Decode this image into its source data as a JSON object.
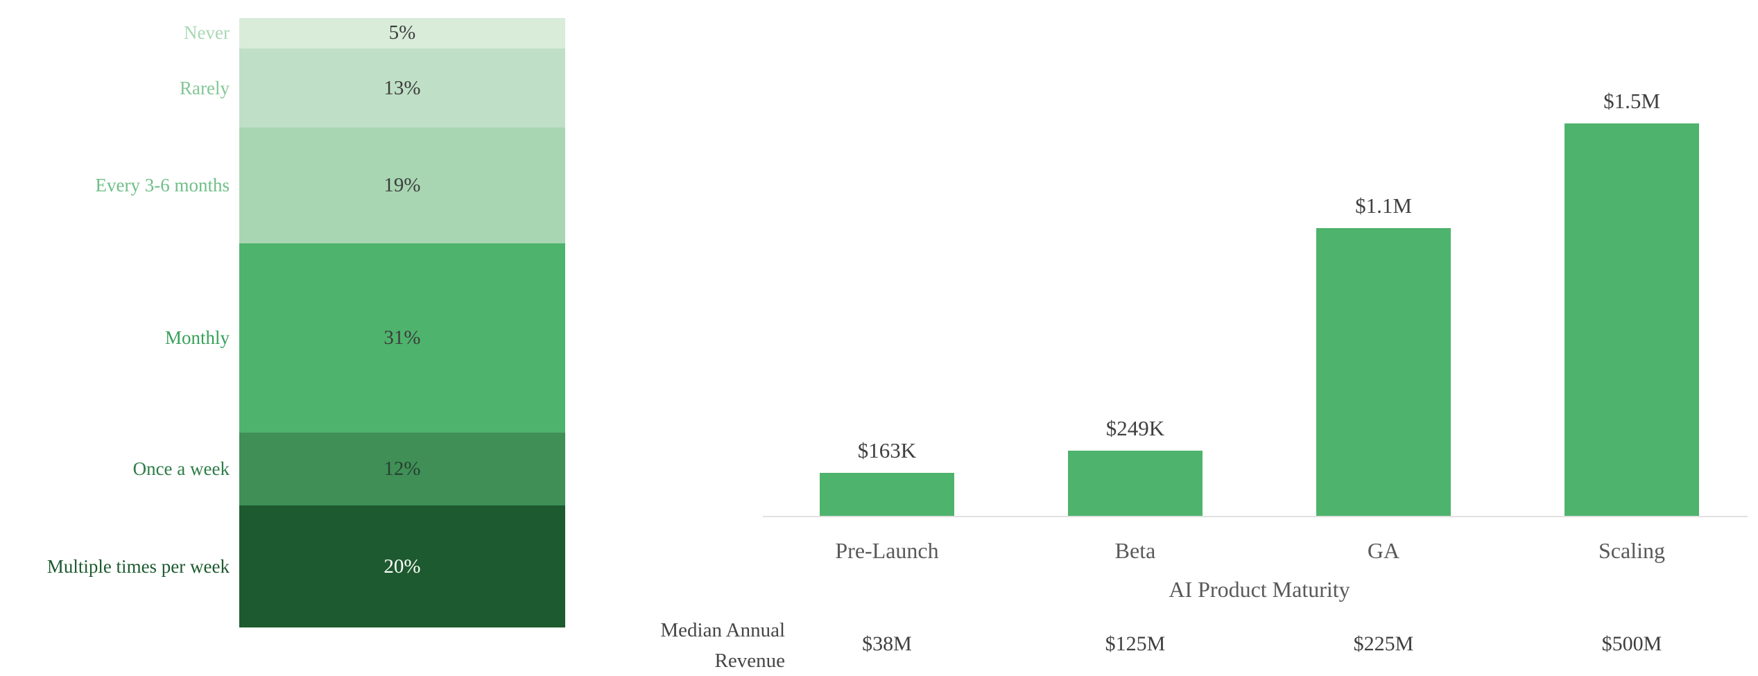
{
  "chart_data": [
    {
      "id": "usage-frequency-stacked",
      "type": "bar",
      "subtype": "stacked-column",
      "categories": [
        "Never",
        "Rarely",
        "Every 3-6 months",
        "Monthly",
        "Once a week",
        "Multiple times per week"
      ],
      "values": [
        5,
        13,
        19,
        31,
        12,
        20
      ],
      "value_labels": [
        "5%",
        "13%",
        "19%",
        "31%",
        "12%",
        "20%"
      ],
      "segment_colors": [
        "#d8ecd9",
        "#bfdfc6",
        "#a8d6b2",
        "#4eb36c",
        "#3f8f57",
        "#1d5a2f"
      ],
      "category_label_colors": [
        "#a9d8b3",
        "#84c796",
        "#6fbf87",
        "#37a05a",
        "#2e7d49",
        "#1d5a2f"
      ],
      "value_text_colors": [
        "#3c3c3c",
        "#3c3c3c",
        "#3c3c3c",
        "#3c3c3c",
        "#27402f",
        "#ffffff"
      ],
      "ylim": [
        0,
        100
      ],
      "legend": "none",
      "grid": false
    },
    {
      "id": "median-annual-ai-revenue-by-maturity",
      "type": "bar",
      "categories": [
        "Pre-Launch",
        "Beta",
        "GA",
        "Scaling"
      ],
      "values": [
        163,
        249,
        1100,
        1500
      ],
      "unit": "K",
      "value_labels": [
        "$163K",
        "$249K",
        "$1.1M",
        "$1.5M"
      ],
      "xlabel": "AI Product Maturity",
      "ylabel": "",
      "ylim": [
        0,
        1500
      ],
      "bar_color": "#4eb36c",
      "grid": false,
      "legend": "none",
      "footer": {
        "label_line1": "Median Annual",
        "label_line2": "Revenue",
        "values": [
          "$38M",
          "$125M",
          "$225M",
          "$500M"
        ]
      }
    }
  ]
}
